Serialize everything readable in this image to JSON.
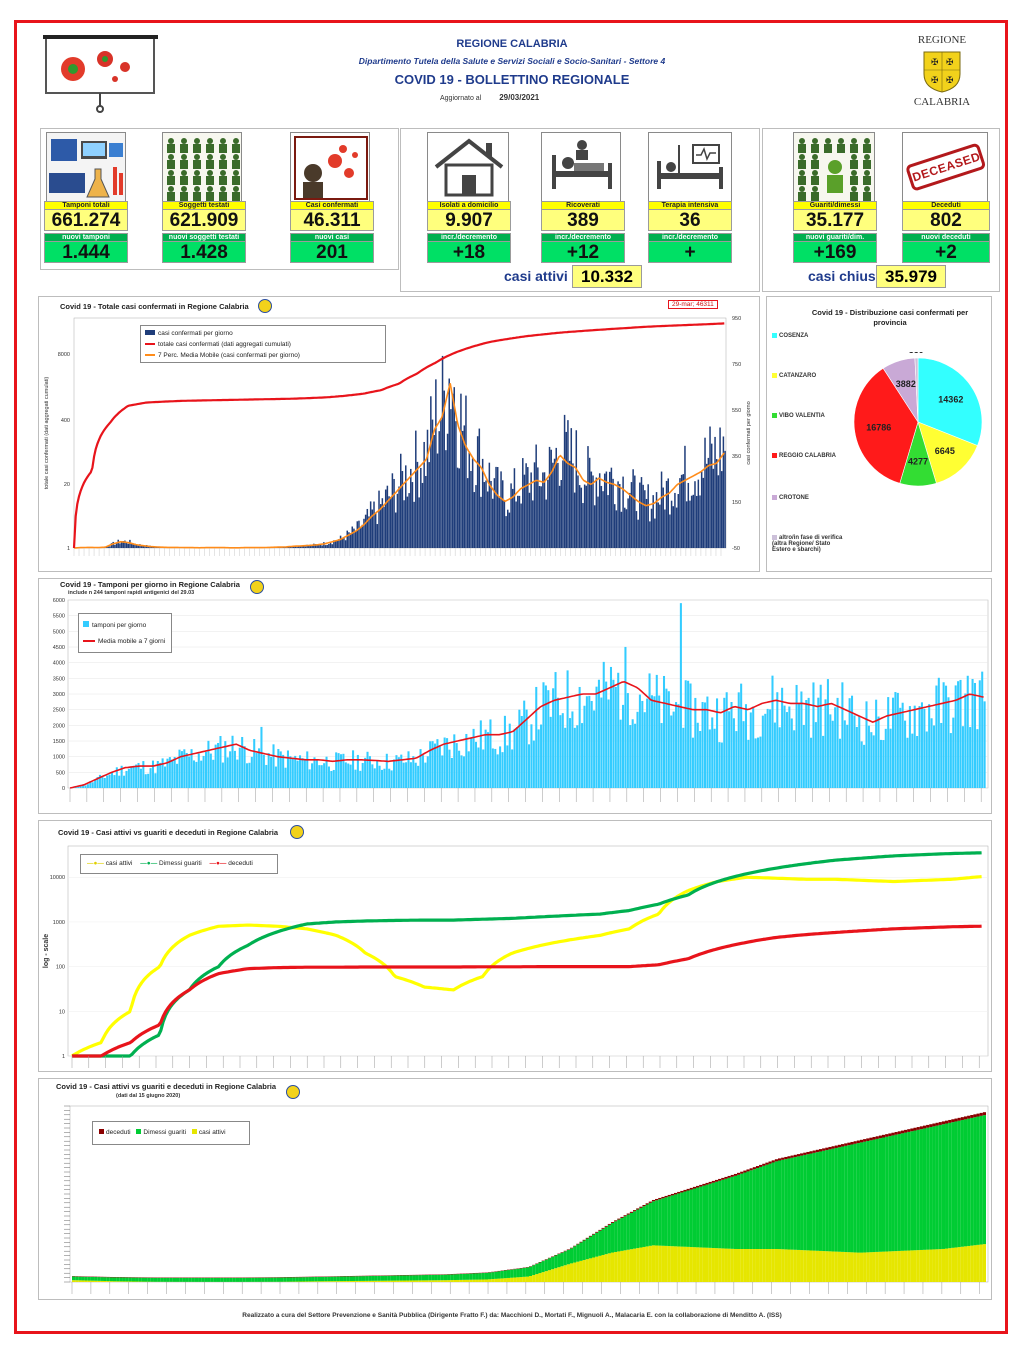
{
  "header": {
    "region": "REGIONE CALABRIA",
    "department": "Dipartimento Tutela della Salute e Servizi Sociali e Socio-Sanitari - Settore 4",
    "title": "COVID 19 - BOLLETTINO REGIONALE",
    "updated_label": "Aggiornato al",
    "updated_date": "29/03/2021",
    "logo_top": "REGIONE",
    "logo_bottom": "CALABRIA"
  },
  "stats": [
    {
      "label": "Tamponi totali",
      "value": "661.274",
      "delta_label": "nuovi tamponi",
      "delta": "1.444",
      "icon": "lab-icon"
    },
    {
      "label": "Soggetti testati",
      "value": "621.909",
      "delta_label": "nuovi soggetti testati",
      "delta": "1.428",
      "icon": "people-grid-icon"
    },
    {
      "label": "Casi confermati",
      "value": "46.311",
      "delta_label": "nuovi casi",
      "delta": "201",
      "icon": "virus-person-icon"
    },
    {
      "label": "Isolati a domicilio",
      "value": "9.907",
      "delta_label": "incr./decremento",
      "delta": "+18",
      "icon": "house-icon"
    },
    {
      "label": "Ricoverati",
      "value": "389",
      "delta_label": "incr./decremento",
      "delta": "+12",
      "icon": "hospital-bed-icon"
    },
    {
      "label": "Terapia intensiva",
      "value": "36",
      "delta_label": "incr./decremento",
      "delta": "+",
      "icon": "intensive-care-icon"
    },
    {
      "label": "Guariti/dimessi",
      "value": "35.177",
      "delta_label": "nuovi guariti/dim.",
      "delta": "+169",
      "icon": "recovered-icon"
    },
    {
      "label": "Deceduti",
      "value": "802",
      "delta_label": "nuovi deceduti",
      "delta": "+2",
      "icon": "deceased-stamp-icon"
    }
  ],
  "deceased_stamp": "DECEASED",
  "summary": {
    "active_label": "casi attivi",
    "active_value": "10.332",
    "closed_label": "casi chiusi",
    "closed_value": "35.979"
  },
  "chart_data": [
    {
      "type": "bar",
      "title": "Covid 19 - Totale casi confermati in Regione Calabria",
      "callout": "29-mar; 46311",
      "ylabel": "totale casi confermati (dati aggregati cumulati)",
      "ylabel_right": "casi confermati per giorno",
      "y_ticks_left": [
        "8000",
        "400",
        "20",
        "1"
      ],
      "y_ticks_right": [
        "950",
        "750",
        "550",
        "350",
        "150",
        "-50"
      ],
      "series": [
        {
          "name": "casi confermati per giorno",
          "color": "#1f3d7a",
          "values": [
            0,
            2,
            3,
            2,
            4,
            20,
            30,
            25,
            15,
            10,
            6,
            4,
            3,
            3,
            2,
            2,
            1,
            2,
            2,
            2,
            1,
            1,
            2,
            2,
            2,
            3,
            4,
            5,
            8,
            10,
            12,
            15,
            20,
            30,
            40,
            60,
            80,
            110,
            150,
            180,
            220,
            260,
            300,
            340,
            380,
            420,
            560,
            620,
            780,
            580,
            480,
            420,
            380,
            300,
            250,
            220,
            240,
            280,
            300,
            320,
            310,
            360,
            440,
            400,
            380,
            320,
            300,
            330,
            310,
            300,
            280,
            250,
            220,
            200,
            210,
            240,
            260,
            300,
            320,
            340,
            360,
            390,
            400,
            450
          ]
        },
        {
          "name": "totale casi confermati (dati aggregati cumulati)",
          "color": "#e8141b",
          "values": [
            1,
            40,
            400,
            900,
            1050,
            1100,
            1140,
            1160,
            1180,
            1200,
            1220,
            1240,
            1260,
            1300,
            1350,
            1450,
            1600,
            1900,
            2600,
            4200,
            7000,
            11000,
            15000,
            19000,
            22000,
            25000,
            27500,
            30000,
            32000,
            34000,
            36000,
            38000,
            40000,
            41500,
            43000,
            44500,
            46311
          ]
        },
        {
          "name": "7 Perc. Media Mobile (casi confermati per giorno)",
          "color": "#ff8c1a"
        }
      ]
    },
    {
      "type": "pie",
      "title": "Covid 19 - Distribuzione casi confermati per provincia",
      "categories": [
        "COSENZA",
        "CATANZARO",
        "VIBO VALENTIA",
        "REGGIO CALABRIA",
        "CROTONE",
        "altro/in fase di verifica (altra Regione/ Stato Estero e sbarchi)"
      ],
      "values": [
        14362,
        6645,
        4277,
        16786,
        3882,
        359
      ],
      "colors": [
        "#33ffff",
        "#ffff33",
        "#33dd33",
        "#ff1a1a",
        "#c9a9d6",
        "#ccc0d9"
      ]
    },
    {
      "type": "bar",
      "title": "Covid 19 - Tamponi per giorno in Regione Calabria",
      "subtitle": "include n 244 tamponi rapidi antigenici del 29.03",
      "ylim": [
        0,
        6000
      ],
      "y_ticks": [
        "6000",
        "5500",
        "5000",
        "4500",
        "4000",
        "3500",
        "3000",
        "2500",
        "2000",
        "1500",
        "1000",
        "500",
        "0"
      ],
      "series": [
        {
          "name": "tamponi per giorno",
          "color": "#33ccff"
        },
        {
          "name": "Media mobile a 7 giorni",
          "color": "#e8141b"
        }
      ],
      "values_moving_avg": [
        0,
        100,
        300,
        500,
        650,
        700,
        700,
        800,
        1000,
        1100,
        1200,
        1300,
        1400,
        1200,
        1100,
        1000,
        950,
        900,
        900,
        850,
        900,
        900,
        880,
        850,
        900,
        950,
        1200,
        1400,
        1500,
        1600,
        1700,
        1700,
        1800,
        2200,
        2600,
        2800,
        2900,
        3000,
        3000,
        3200,
        3400,
        3200,
        2800,
        2700,
        2600,
        2500,
        2500,
        2400,
        2600,
        2500,
        2700,
        2800,
        2700,
        2700,
        2600,
        2700,
        2500,
        2300,
        2100,
        2300,
        2400,
        2500,
        2600,
        2700,
        2800,
        3000,
        2900
      ]
    },
    {
      "type": "line",
      "title": "Covid 19 - Casi attivi vs guariti e deceduti in Regione Calabria",
      "ylabel": "log - scale",
      "y_ticks": [
        "10000",
        "1000",
        "100",
        "10",
        "1"
      ],
      "series": [
        {
          "name": "casi attivi",
          "color": "#ffff00",
          "values": [
            1,
            2,
            10,
            100,
            500,
            800,
            850,
            800,
            700,
            500,
            200,
            60,
            35,
            30,
            60,
            200,
            300,
            400,
            500,
            700,
            1500,
            5000,
            8000,
            10000,
            9500,
            9000,
            9000,
            8500,
            8000,
            8500,
            9000,
            10332
          ]
        },
        {
          "name": "Dimessi guariti",
          "color": "#00b050",
          "values": [
            1,
            1,
            1,
            3,
            30,
            100,
            300,
            600,
            900,
            1000,
            1050,
            1080,
            1100,
            1100,
            1150,
            1200,
            1300,
            1400,
            1500,
            1800,
            2500,
            4000,
            8000,
            12000,
            16000,
            20000,
            24000,
            27000,
            30000,
            32000,
            34000,
            35177
          ]
        },
        {
          "name": "deceduti",
          "color": "#e8141b",
          "values": [
            1,
            1,
            2,
            5,
            30,
            70,
            90,
            95,
            97,
            97,
            98,
            98,
            98,
            98,
            99,
            99,
            100,
            100,
            100,
            100,
            110,
            150,
            250,
            350,
            450,
            520,
            580,
            640,
            700,
            740,
            780,
            802
          ]
        }
      ]
    },
    {
      "type": "area",
      "title": "Covid 19 - Casi attivi vs guariti e deceduti in Regione Calabria",
      "subtitle": "(dati dal 15 giugno 2020)",
      "series": [
        {
          "name": "deceduti",
          "color": "#8b0000"
        },
        {
          "name": "Dimessi guariti",
          "color": "#00cc33"
        },
        {
          "name": "casi attivi",
          "color": "#e6e600"
        }
      ]
    }
  ],
  "footer": "Realizzato a cura del Settore Prevenzione e Sanità Pubblica (Dirigente Fratto F.) da: Macchioni D., Mortati F., Mignuoli A., Malacaria E. con la collaborazione di Menditto A. (ISS)"
}
